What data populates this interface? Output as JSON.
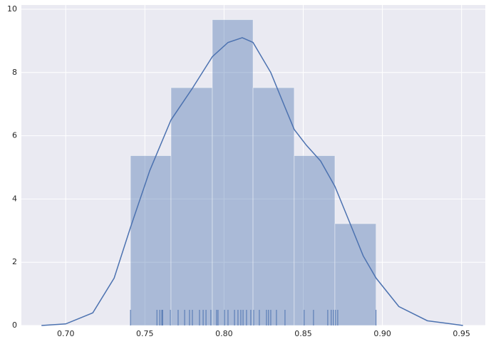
{
  "chart_data": {
    "type": "histogram",
    "bins": [
      0.7409,
      0.7665,
      0.7926,
      0.8183,
      0.8443,
      0.87,
      0.896
    ],
    "values": [
      5.37,
      7.52,
      9.67,
      7.52,
      5.37,
      3.22
    ],
    "color": "#4c72b0",
    "kde": {
      "x": [
        0.6847,
        0.7,
        0.7171,
        0.7306,
        0.7409,
        0.7531,
        0.7665,
        0.78,
        0.7926,
        0.8025,
        0.8115,
        0.8183,
        0.8295,
        0.8385,
        0.8443,
        0.852,
        0.861,
        0.87,
        0.879,
        0.8879,
        0.896,
        0.9104,
        0.9284,
        0.9509
      ],
      "values": [
        0,
        0.05,
        0.4,
        1.5,
        3.1,
        4.9,
        6.5,
        7.5,
        8.5,
        8.95,
        9.1,
        8.95,
        8.0,
        6.9,
        6.2,
        5.7,
        5.2,
        4.4,
        3.3,
        2.2,
        1.5,
        0.6,
        0.15,
        0
      ],
      "color": "#4c72b0"
    },
    "rug": {
      "values": [
        0.7409,
        0.7576,
        0.7594,
        0.7607,
        0.7612,
        0.7661,
        0.771,
        0.7751,
        0.7782,
        0.78,
        0.7845,
        0.7868,
        0.7886,
        0.7917,
        0.7953,
        0.7962,
        0.8003,
        0.8025,
        0.8066,
        0.8088,
        0.8106,
        0.812,
        0.8142,
        0.8169,
        0.8187,
        0.8223,
        0.8268,
        0.8281,
        0.8295,
        0.8331,
        0.8385,
        0.8506,
        0.8565,
        0.8655,
        0.8677,
        0.8691,
        0.8704,
        0.8718,
        0.896
      ],
      "color": "#4c72b0"
    },
    "xlim": [
      0.672,
      0.965
    ],
    "ylim": [
      0,
      10.135
    ],
    "xticks": [
      {
        "value": 0.7,
        "label": "0.70"
      },
      0.75,
      {
        "value": 0.8,
        "label": "0.80"
      },
      0.85,
      {
        "value": 0.9,
        "label": "0.90"
      },
      0.95
    ],
    "yticks": [
      0,
      2,
      4,
      6,
      8,
      10
    ],
    "grid": true
  }
}
